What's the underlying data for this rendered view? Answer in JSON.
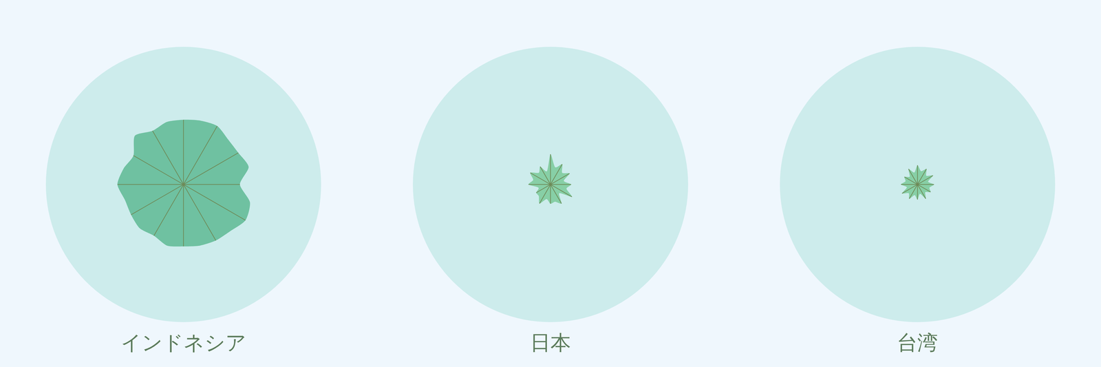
{
  "chart_data": [
    {
      "type": "radar",
      "title": "インドネシア",
      "color": "#6fc1a1",
      "ylim": [
        0,
        100
      ],
      "values": [
        47,
        48,
        49,
        46,
        46,
        49,
        41,
        50,
        52,
        48,
        47,
        46,
        45,
        46,
        43,
        45,
        44,
        44,
        48,
        45,
        42,
        50,
        45,
        47
      ]
    },
    {
      "type": "radar",
      "title": "日本",
      "color": "#87cfa6",
      "ylim": [
        0,
        100
      ],
      "values": [
        22,
        13,
        17,
        12,
        16,
        10,
        15,
        12,
        18,
        9,
        16,
        13,
        14,
        11,
        16,
        12,
        12,
        9,
        16,
        13,
        17,
        12,
        15,
        10
      ]
    },
    {
      "type": "radar",
      "title": "台湾",
      "color": "#87cfa6",
      "ylim": [
        0,
        100
      ],
      "values": [
        14,
        10,
        13,
        9,
        13,
        8,
        12,
        9,
        11,
        8,
        12,
        7,
        11,
        8,
        12,
        9,
        13,
        8,
        12,
        9,
        11,
        8,
        13,
        9
      ]
    }
  ]
}
